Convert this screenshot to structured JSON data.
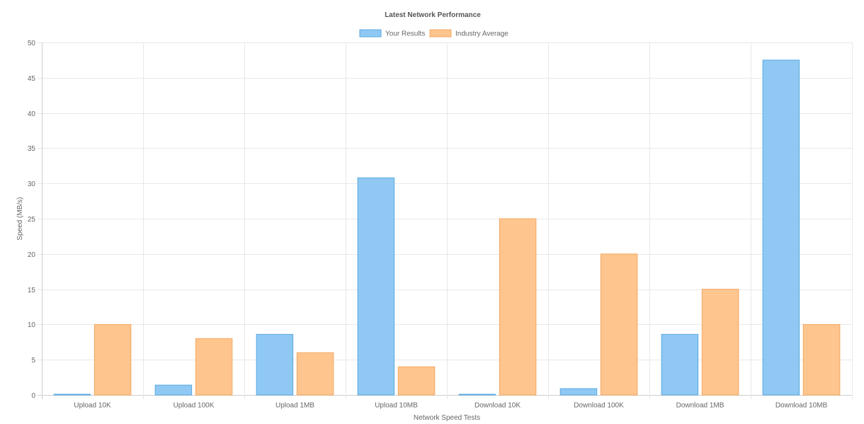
{
  "chart_data": {
    "type": "bar",
    "title": "Latest Network Performance",
    "xlabel": "Network Speed Tests",
    "ylabel": "Speed (MB/s)",
    "ylim": [
      0,
      50
    ],
    "ytick_step": 5,
    "grid": true,
    "legend_position": "top-center",
    "categories": [
      "Upload 10K",
      "Upload 100K",
      "Upload 1MB",
      "Upload 10MB",
      "Download 10K",
      "Download 100K",
      "Download 1MB",
      "Download 10MB"
    ],
    "series": [
      {
        "name": "Your Results",
        "values": [
          0.1,
          1.4,
          8.6,
          30.8,
          0.1,
          0.9,
          8.6,
          47.5
        ],
        "fill": "#8ec8f3",
        "stroke": "#5aa9e0"
      },
      {
        "name": "Industry Average",
        "values": [
          10,
          8,
          6,
          4,
          25,
          20,
          15,
          10
        ],
        "fill": "#ffc58f",
        "stroke": "#f3a860"
      }
    ]
  }
}
